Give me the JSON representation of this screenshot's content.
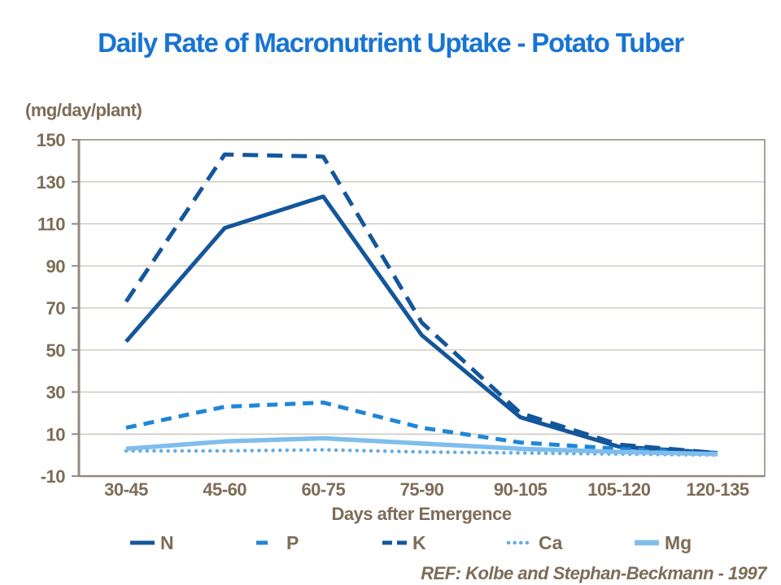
{
  "page": {
    "ref_note": "REF: Kolbe and Stephan-Beckmann - 1997"
  },
  "colors": {
    "title_blue": "#1874D2",
    "axis_text": "#7D6C57",
    "axis_line": "#948A7E",
    "gridline": "#C6BFB5",
    "navy": "#14569B",
    "bright_blue": "#1F86D8",
    "light_blue": "#7FBEEC",
    "dotted_blue": "#66ACE4"
  },
  "chart_data": {
    "type": "line",
    "title": "Daily Rate of Macronutrient Uptake - Potato Tuber",
    "unit_label": "(mg/day/plant)",
    "xlabel": "Days after Emergence",
    "ylim": [
      -10,
      150
    ],
    "yticks": [
      150,
      130,
      110,
      90,
      70,
      50,
      30,
      10,
      -10
    ],
    "grid": true,
    "legend_position": "bottom",
    "categories": [
      "30-45",
      "45-60",
      "60-75",
      "75-90",
      "90-105",
      "105-120",
      "120-135"
    ],
    "series": [
      {
        "name": "N",
        "values": [
          54,
          108,
          123,
          57,
          18,
          4,
          1
        ],
        "color": "#14569B",
        "style": "solid",
        "width": 5
      },
      {
        "name": "P",
        "values": [
          13,
          23,
          25,
          13,
          6,
          3,
          1
        ],
        "color": "#1F86D8",
        "style": "dashed",
        "width": 5
      },
      {
        "name": "K",
        "values": [
          73,
          143,
          142,
          63,
          20,
          5,
          1
        ],
        "color": "#14569B",
        "style": "long-dashed",
        "width": 5
      },
      {
        "name": "Ca",
        "values": [
          2,
          2,
          2.5,
          1.5,
          1,
          0.5,
          0
        ],
        "color": "#66ACE4",
        "style": "dotted",
        "width": 4.5
      },
      {
        "name": "Mg",
        "values": [
          3,
          6.5,
          8,
          5.5,
          3,
          1.5,
          0.5
        ],
        "color": "#7FBEEC",
        "style": "solid",
        "width": 5.5
      }
    ]
  }
}
